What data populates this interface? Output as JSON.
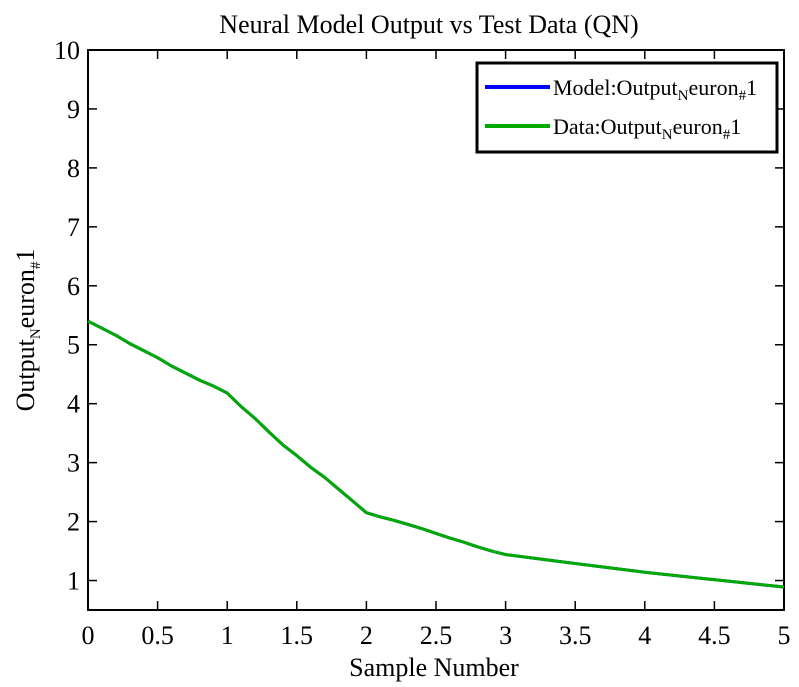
{
  "chart_data": {
    "type": "line",
    "title": "Neural Model Output vs Test Data (QN)",
    "xlabel": "Sample Number",
    "ylabel": {
      "main": "Output",
      "sub": "N",
      "rest": "euron",
      "sub2": "#",
      "end": "1"
    },
    "xlim": [
      0,
      5
    ],
    "ylim": [
      0.5,
      10
    ],
    "x_ticks": [
      "0",
      "0.5",
      "1",
      "1.5",
      "2",
      "2.5",
      "3",
      "3.5",
      "4",
      "4.5",
      "5"
    ],
    "y_ticks": [
      "1",
      "2",
      "3",
      "4",
      "5",
      "6",
      "7",
      "8",
      "9",
      "10"
    ],
    "legend_position": "top-right",
    "series": [
      {
        "name": {
          "main": "Model:Output",
          "sub": "N",
          "rest": "euron",
          "sub2": "#",
          "end": "1"
        },
        "color": "#0000ff",
        "x": [
          0,
          0.1,
          0.2,
          0.3,
          0.4,
          0.5,
          0.6,
          0.7,
          0.8,
          0.9,
          1.0,
          1.1,
          1.2,
          1.3,
          1.4,
          1.5,
          1.6,
          1.7,
          1.8,
          1.9,
          2.0,
          2.1,
          2.2,
          2.3,
          2.4,
          2.5,
          2.6,
          2.7,
          2.8,
          2.9,
          3.0,
          3.2,
          3.4,
          3.6,
          3.8,
          4.0,
          4.2,
          4.4,
          4.6,
          4.8,
          5.0
        ],
        "y": [
          5.4,
          5.28,
          5.16,
          5.02,
          4.9,
          4.78,
          4.64,
          4.52,
          4.4,
          4.3,
          4.18,
          3.95,
          3.75,
          3.52,
          3.3,
          3.12,
          2.92,
          2.75,
          2.55,
          2.35,
          2.15,
          2.08,
          2.02,
          1.95,
          1.88,
          1.8,
          1.72,
          1.65,
          1.57,
          1.5,
          1.44,
          1.38,
          1.32,
          1.26,
          1.2,
          1.14,
          1.09,
          1.04,
          0.99,
          0.94,
          0.89
        ]
      },
      {
        "name": {
          "main": "Data:Output",
          "sub": "N",
          "rest": "euron",
          "sub2": "#",
          "end": "1"
        },
        "color": "#00aa00",
        "x": [
          0,
          0.1,
          0.2,
          0.3,
          0.4,
          0.5,
          0.6,
          0.7,
          0.8,
          0.9,
          1.0,
          1.1,
          1.2,
          1.3,
          1.4,
          1.5,
          1.6,
          1.7,
          1.8,
          1.9,
          2.0,
          2.1,
          2.2,
          2.3,
          2.4,
          2.5,
          2.6,
          2.7,
          2.8,
          2.9,
          3.0,
          3.2,
          3.4,
          3.6,
          3.8,
          4.0,
          4.2,
          4.4,
          4.6,
          4.8,
          5.0
        ],
        "y": [
          5.4,
          5.28,
          5.16,
          5.02,
          4.9,
          4.78,
          4.64,
          4.52,
          4.4,
          4.3,
          4.18,
          3.95,
          3.75,
          3.52,
          3.3,
          3.12,
          2.92,
          2.75,
          2.55,
          2.35,
          2.15,
          2.08,
          2.02,
          1.95,
          1.88,
          1.8,
          1.72,
          1.65,
          1.57,
          1.5,
          1.44,
          1.38,
          1.32,
          1.26,
          1.2,
          1.14,
          1.09,
          1.04,
          0.99,
          0.94,
          0.89
        ]
      }
    ]
  }
}
